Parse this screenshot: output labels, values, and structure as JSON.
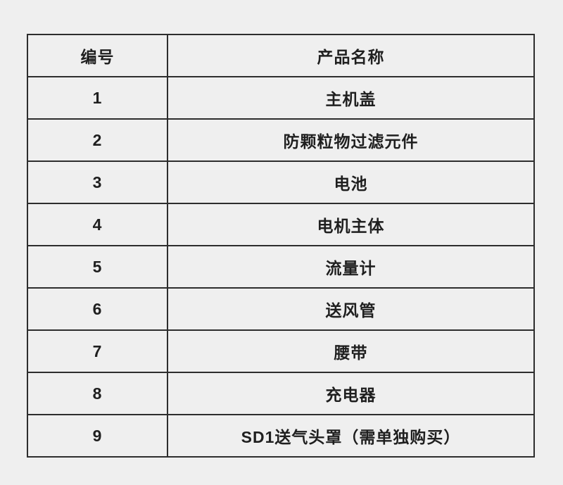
{
  "page": {
    "background_color": "#efefef",
    "border_color": "#2d2d2d",
    "text_color": "#1f1f1f"
  },
  "table": {
    "header": {
      "id_label": "编号",
      "name_label": "产品名称"
    },
    "rows": [
      {
        "id": "1",
        "name": "主机盖"
      },
      {
        "id": "2",
        "name": "防颗粒物过滤元件"
      },
      {
        "id": "3",
        "name": "电池"
      },
      {
        "id": "4",
        "name": "电机主体"
      },
      {
        "id": "5",
        "name": "流量计"
      },
      {
        "id": "6",
        "name": "送风管"
      },
      {
        "id": "7",
        "name": "腰带"
      },
      {
        "id": "8",
        "name": "充电器"
      },
      {
        "id": "9",
        "name": "SD1送气头罩（需单独购买）"
      }
    ]
  }
}
